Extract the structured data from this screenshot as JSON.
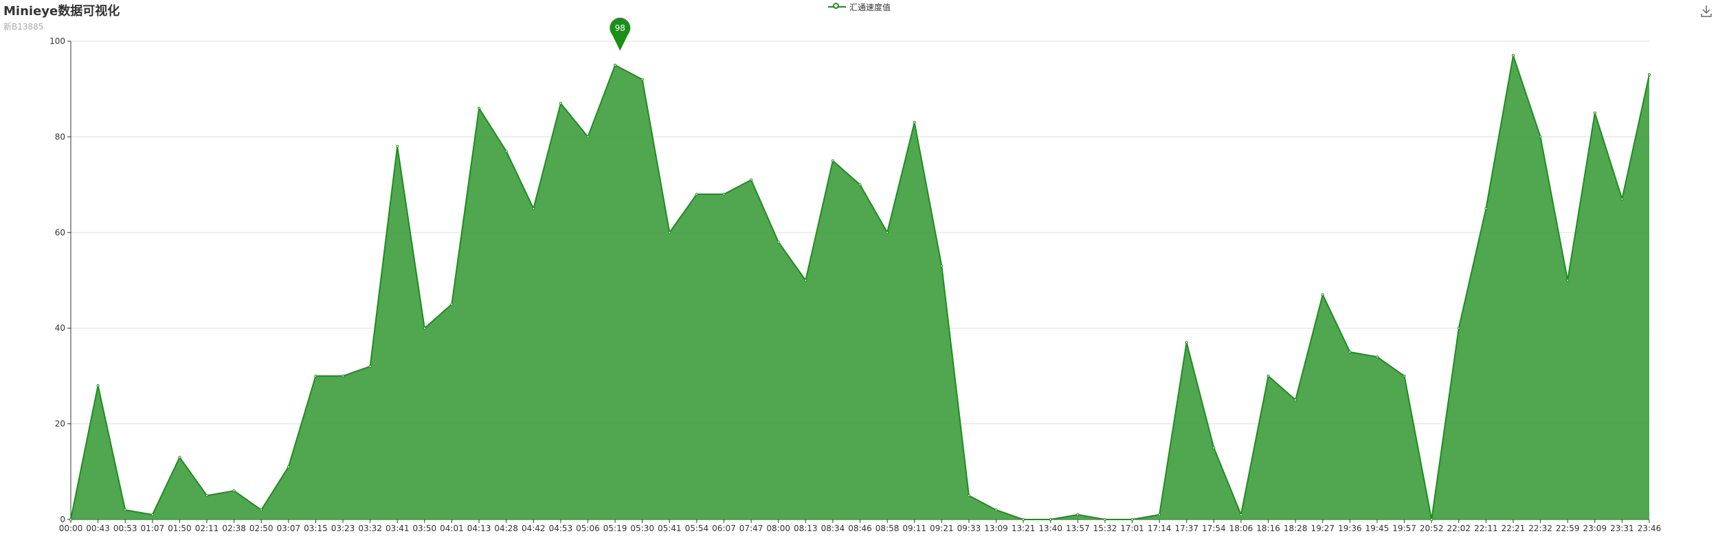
{
  "title": "Minieye数据可视化",
  "subtitle": "新B13885",
  "colors": {
    "series": "#1a8f1a",
    "area": "#3d9d3d",
    "grid": "#dddddd",
    "axis": "#333333"
  },
  "icons": {
    "download": "download-icon"
  },
  "chart_data": {
    "type": "area",
    "title": "Minieye数据可视化",
    "subtitle": "新B13885",
    "legend": {
      "position": "top-center",
      "entries": [
        "汇通速度值"
      ]
    },
    "ylim": [
      0,
      100
    ],
    "yticks": [
      0,
      20,
      40,
      60,
      80,
      100
    ],
    "grid": true,
    "x": [
      "00:00",
      "00:43",
      "00:53",
      "01:07",
      "01:50",
      "02:11",
      "02:38",
      "02:50",
      "03:07",
      "03:15",
      "03:23",
      "03:32",
      "03:41",
      "03:50",
      "04:01",
      "04:13",
      "04:28",
      "04:42",
      "04:53",
      "05:06",
      "05:19",
      "05:30",
      "05:41",
      "05:54",
      "06:07",
      "07:47",
      "08:00",
      "08:13",
      "08:34",
      "08:46",
      "08:58",
      "09:11",
      "09:21",
      "09:33",
      "13:09",
      "13:21",
      "13:40",
      "13:57",
      "15:32",
      "17:01",
      "17:14",
      "17:37",
      "17:54",
      "18:06",
      "18:16",
      "18:28",
      "19:27",
      "19:36",
      "19:45",
      "19:57",
      "20:52",
      "22:02",
      "22:11",
      "22:21",
      "22:32",
      "22:59",
      "23:09",
      "23:31",
      "23:46"
    ],
    "series": [
      {
        "name": "汇通速度值",
        "values": [
          0,
          28,
          2,
          1,
          13,
          5,
          6,
          2,
          11,
          30,
          30,
          32,
          78,
          40,
          45,
          86,
          77,
          65,
          87,
          80,
          95,
          92,
          60,
          68,
          68,
          71,
          58,
          50,
          75,
          70,
          60,
          83,
          53,
          5,
          2,
          0,
          0,
          1,
          0,
          0,
          1,
          37,
          15,
          1,
          30,
          25,
          47,
          35,
          34,
          30,
          0,
          40,
          65,
          97,
          80,
          50,
          85,
          67,
          93
        ]
      }
    ],
    "markPoint": {
      "label": "98",
      "value": 98,
      "x": "05:21"
    }
  }
}
